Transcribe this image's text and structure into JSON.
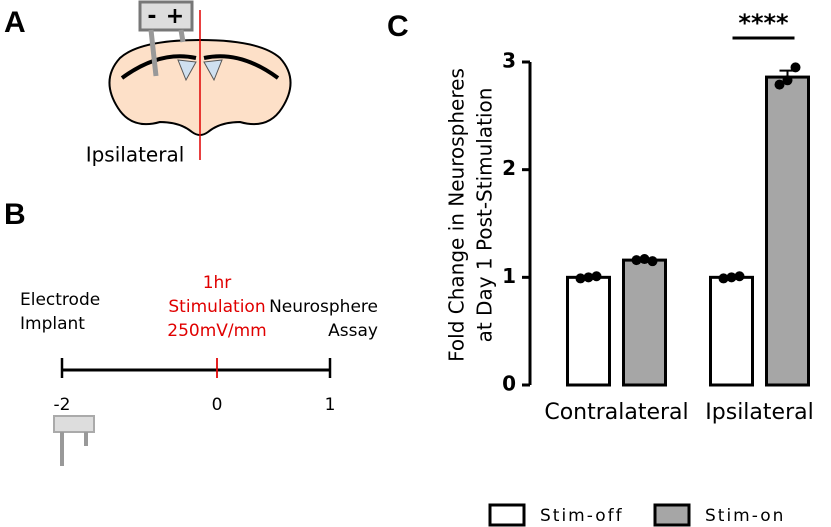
{
  "panels": {
    "a": "A",
    "b": "B",
    "c": "C"
  },
  "panel_a": {
    "label": "Ipsilateral",
    "minus": "-",
    "plus": "+"
  },
  "panel_b": {
    "left": [
      "Electrode",
      "Implant"
    ],
    "middle": [
      "1hr",
      "Stimulation",
      "250mV/mm"
    ],
    "right": [
      "Neurosphere",
      "Assay"
    ],
    "ticks": [
      -2,
      0,
      1
    ]
  },
  "chart_data": {
    "type": "bar",
    "ylabel": [
      "Fold Change in Neurospheres",
      "at Day 1 Post-Stimulation"
    ],
    "categories": [
      "Contralateral",
      "Ipsilateral"
    ],
    "series": [
      {
        "name": "Stim-off",
        "color": "#ffffff",
        "values": [
          1.0,
          1.0
        ],
        "errors": [
          0.01,
          0.01
        ],
        "points": [
          [
            0.99,
            1.0,
            1.01
          ],
          [
            0.99,
            1.0,
            1.01
          ]
        ]
      },
      {
        "name": "Stim-on",
        "color": "#a6a6a6",
        "values": [
          1.16,
          2.86
        ],
        "errors": [
          0.01,
          0.06
        ],
        "points": [
          [
            1.16,
            1.17,
            1.15
          ],
          [
            2.79,
            2.83,
            2.95
          ]
        ]
      }
    ],
    "annotation": "****",
    "ylim": [
      0,
      3
    ],
    "yticks": [
      0,
      1,
      2,
      3
    ],
    "grid": false,
    "legend": "bottom"
  }
}
